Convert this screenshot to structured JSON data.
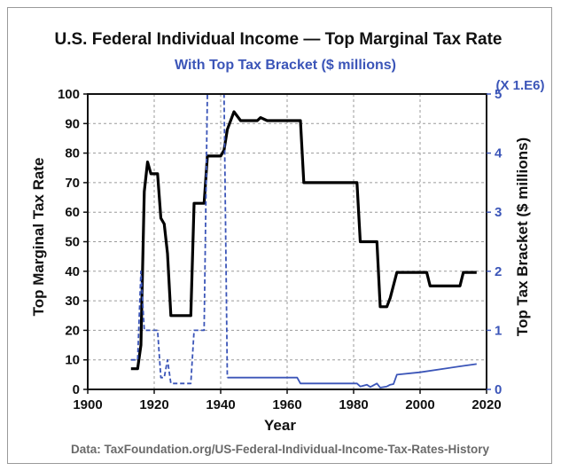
{
  "chart_data": {
    "type": "line",
    "title": "U.S. Federal Individual Income — Top Marginal Tax Rate",
    "subtitle": "With Top Tax Bracket ($ millions)",
    "xlabel": "Year",
    "ylabel": "Top Marginal Tax Rate",
    "y2label": "Top Tax Bracket ($ millions)",
    "y2_multiplier": "(X 1.E6)",
    "source": "Data: TaxFoundation.org/US-Federal-Individual-Income-Tax-Rates-History",
    "xlim": [
      1900,
      2020
    ],
    "ylim": [
      0,
      100
    ],
    "y2lim": [
      0,
      5
    ],
    "x_ticks": [
      1900,
      1920,
      1940,
      1960,
      1980,
      2000,
      2020
    ],
    "y_ticks": [
      0,
      10,
      20,
      30,
      40,
      50,
      60,
      70,
      80,
      90,
      100
    ],
    "y2_ticks": [
      0,
      1,
      2,
      3,
      4,
      5
    ],
    "grid": true,
    "colors": {
      "rate": "#000000",
      "bracket": "#3b55b8"
    },
    "series": [
      {
        "axis": "left",
        "style": "solid",
        "x": [
          1913,
          1915,
          1916,
          1917,
          1918,
          1919,
          1921,
          1922,
          1923,
          1924,
          1925,
          1931,
          1932,
          1935,
          1936,
          1940,
          1941,
          1942,
          1944,
          1946,
          1951,
          1952,
          1954,
          1964,
          1965,
          1981,
          1982,
          1987,
          1988,
          1990,
          1991,
          1993,
          2002,
          2003,
          2012,
          2013,
          2017
        ],
        "y": [
          7,
          7,
          15,
          67,
          77,
          73,
          73,
          58,
          56,
          46,
          25,
          25,
          63,
          63,
          79,
          79,
          81,
          88,
          94,
          91,
          91,
          92,
          91,
          91,
          70,
          70,
          50,
          50,
          28,
          28,
          31,
          39.6,
          39.6,
          35,
          35,
          39.6,
          39.6
        ]
      },
      {
        "axis": "right",
        "style": "dashed",
        "x": [
          1913,
          1915,
          1916,
          1917,
          1918,
          1921,
          1922,
          1923,
          1924,
          1925,
          1931,
          1932,
          1935,
          1936,
          1941,
          1942
        ],
        "y": [
          0.5,
          0.5,
          2.0,
          1.0,
          1.0,
          1.0,
          0.2,
          0.2,
          0.5,
          0.1,
          0.1,
          1.0,
          1.0,
          5.0,
          5.0,
          0.2
        ]
      },
      {
        "axis": "right",
        "style": "solid",
        "x": [
          1942,
          1963,
          1964,
          1981,
          1982,
          1984,
          1985,
          1987,
          1988,
          1990,
          1991,
          1992,
          1993,
          2000,
          2012,
          2017
        ],
        "y": [
          0.2,
          0.2,
          0.1,
          0.1,
          0.05,
          0.08,
          0.04,
          0.1,
          0.03,
          0.05,
          0.08,
          0.09,
          0.25,
          0.29,
          0.39,
          0.43
        ]
      }
    ]
  }
}
